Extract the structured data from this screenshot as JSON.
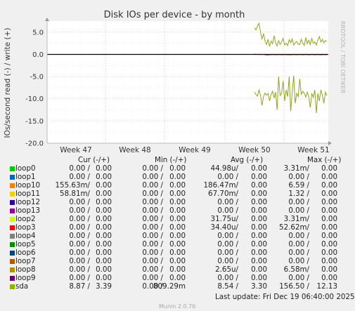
{
  "chart_data": {
    "type": "line",
    "title": "Disk IOs per device - by month",
    "ylabel": "IOs/second read (-) / write (+)",
    "side_label": "RRDTOOL / TOBI OETIKER",
    "ylim": [
      -20,
      7.5
    ],
    "yticks": [
      "5.0",
      "0.0",
      "-5.0",
      "-10.0",
      "-15.0",
      "-20.0"
    ],
    "ytick_values": [
      5,
      0,
      -5,
      -10,
      -15,
      -20
    ],
    "xticks": [
      "Week 47",
      "Week 48",
      "Week 49",
      "Week 50",
      "Week 51"
    ],
    "grid": true,
    "series": [
      {
        "name": "sda",
        "color": "#8FA41F",
        "write": [
          6.0,
          5.5,
          6.4,
          7.0,
          5.0,
          3.5,
          4.6,
          3.0,
          2.2,
          3.4,
          1.8,
          3.0,
          2.4,
          4.2,
          2.6,
          1.9,
          3.1,
          2.2,
          2.8,
          3.6,
          2.1,
          2.5,
          2.0,
          3.3,
          2.6,
          3.5,
          2.1,
          2.6,
          2.9,
          2.3,
          2.2,
          3.4,
          2.5,
          2.0,
          3.8,
          2.4,
          3.2,
          2.2,
          3.6,
          2.5,
          2.8,
          2.1,
          3.2,
          4.0,
          2.8,
          3.4,
          2.6,
          3.1,
          2.9
        ],
        "read": [
          -8.5,
          -9.0,
          -9.4,
          -8.0,
          -9.2,
          -11.5,
          -9.5,
          -8.7,
          -9.2,
          -8.8,
          -10.5,
          -9.0,
          -8.3,
          -9.8,
          -8.5,
          -12.5,
          -5.0,
          -9.3,
          -8.8,
          -6.0,
          -10.5,
          -8.0,
          -9.5,
          -5.0,
          -12.8,
          -8.6,
          -4.8,
          -11.0,
          -8.8,
          -9.5,
          -5.5,
          -9.0,
          -8.3,
          -8.8,
          -9.6,
          -8.5,
          -9.6,
          -12.0,
          -8.8,
          -9.7,
          -8.0,
          -13.2,
          -8.8,
          -10.5,
          -8.0,
          -9.2,
          -11.0,
          -8.5,
          -9.3
        ]
      },
      {
        "name": "loop3",
        "color": "#CC3300",
        "write": [
          0.05,
          0.0,
          -0.05,
          0.0,
          -0.15,
          -0.1,
          -0.05,
          -0.1,
          -0.05,
          -0.1,
          -0.05,
          -0.1,
          -0.1,
          -0.05,
          -0.1,
          -0.05,
          -0.1,
          -0.05,
          -0.1,
          -0.05,
          -0.1,
          -0.05,
          -0.1,
          -0.05,
          -0.1
        ]
      }
    ]
  },
  "legend": {
    "col_cur": "Cur (-/+)",
    "col_min": "Min (-/+)",
    "col_avg": "Avg (-/+)",
    "col_max": "Max (-/+)",
    "rows": [
      {
        "name": "loop0",
        "color": "#00CC00",
        "cur_r": "0.00 /",
        "cur_w": "0.00",
        "min_r": "0.00 /",
        "min_w": "0.00",
        "avg_r": "44.98u/",
        "avg_w": "0.00",
        "max_r": "3.31m/",
        "max_w": "0.00"
      },
      {
        "name": "loop1",
        "color": "#0066B3",
        "cur_r": "0.00 /",
        "cur_w": "0.00",
        "min_r": "0.00 /",
        "min_w": "0.00",
        "avg_r": "0.00 /",
        "avg_w": "0.00",
        "max_r": "0.00 /",
        "max_w": "0.00"
      },
      {
        "name": "loop10",
        "color": "#FF8000",
        "cur_r": "155.63m/",
        "cur_w": "0.00",
        "min_r": "0.00 /",
        "min_w": "0.00",
        "avg_r": "186.47m/",
        "avg_w": "0.00",
        "max_r": "6.59 /",
        "max_w": "0.00"
      },
      {
        "name": "loop11",
        "color": "#FFCC00",
        "cur_r": "58.81m/",
        "cur_w": "0.00",
        "min_r": "0.00 /",
        "min_w": "0.00",
        "avg_r": "67.70m/",
        "avg_w": "0.00",
        "max_r": "1.32 /",
        "max_w": "0.00"
      },
      {
        "name": "loop12",
        "color": "#330099",
        "cur_r": "0.00 /",
        "cur_w": "0.00",
        "min_r": "0.00 /",
        "min_w": "0.00",
        "avg_r": "0.00 /",
        "avg_w": "0.00",
        "max_r": "0.00 /",
        "max_w": "0.00"
      },
      {
        "name": "loop13",
        "color": "#990099",
        "cur_r": "0.00 /",
        "cur_w": "0.00",
        "min_r": "0.00 /",
        "min_w": "0.00",
        "avg_r": "0.00 /",
        "avg_w": "0.00",
        "max_r": "0.00 /",
        "max_w": "0.00"
      },
      {
        "name": "loop2",
        "color": "#CCFF00",
        "cur_r": "0.00 /",
        "cur_w": "0.00",
        "min_r": "0.00 /",
        "min_w": "0.00",
        "avg_r": "31.75u/",
        "avg_w": "0.00",
        "max_r": "3.31m/",
        "max_w": "0.00"
      },
      {
        "name": "loop3",
        "color": "#FF0000",
        "cur_r": "0.00 /",
        "cur_w": "0.00",
        "min_r": "0.00 /",
        "min_w": "0.00",
        "avg_r": "34.40u/",
        "avg_w": "0.00",
        "max_r": "52.62m/",
        "max_w": "0.00"
      },
      {
        "name": "loop4",
        "color": "#808080",
        "cur_r": "0.00 /",
        "cur_w": "0.00",
        "min_r": "0.00 /",
        "min_w": "0.00",
        "avg_r": "0.00 /",
        "avg_w": "0.00",
        "max_r": "0.00 /",
        "max_w": "0.00"
      },
      {
        "name": "loop5",
        "color": "#008F00",
        "cur_r": "0.00 /",
        "cur_w": "0.00",
        "min_r": "0.00 /",
        "min_w": "0.00",
        "avg_r": "0.00 /",
        "avg_w": "0.00",
        "max_r": "0.00 /",
        "max_w": "0.00"
      },
      {
        "name": "loop6",
        "color": "#00487D",
        "cur_r": "0.00 /",
        "cur_w": "0.00",
        "min_r": "0.00 /",
        "min_w": "0.00",
        "avg_r": "0.00 /",
        "avg_w": "0.00",
        "max_r": "0.00 /",
        "max_w": "0.00"
      },
      {
        "name": "loop7",
        "color": "#B35A00",
        "cur_r": "0.00 /",
        "cur_w": "0.00",
        "min_r": "0.00 /",
        "min_w": "0.00",
        "avg_r": "0.00 /",
        "avg_w": "0.00",
        "max_r": "0.00 /",
        "max_w": "0.00"
      },
      {
        "name": "loop8",
        "color": "#B38F00",
        "cur_r": "0.00 /",
        "cur_w": "0.00",
        "min_r": "0.00 /",
        "min_w": "0.00",
        "avg_r": "2.65u/",
        "avg_w": "0.00",
        "max_r": "6.58m/",
        "max_w": "0.00"
      },
      {
        "name": "loop9",
        "color": "#6B006B",
        "cur_r": "0.00 /",
        "cur_w": "0.00",
        "min_r": "0.00 /",
        "min_w": "0.00",
        "avg_r": "0.00 /",
        "avg_w": "0.00",
        "max_r": "0.00 /",
        "max_w": "0.00"
      },
      {
        "name": "sda",
        "color": "#8FB300",
        "cur_r": "8.87 /",
        "cur_w": "3.39",
        "min_r": "0.00 /",
        "min_w": "809.29m",
        "avg_r": "8.54 /",
        "avg_w": "3.30",
        "max_r": "156.50 /",
        "max_w": "12.13"
      }
    ]
  },
  "footer": {
    "last_update": "Last update: Fri Dec 19 06:40:00 2025",
    "munin": "Munin 2.0.76"
  }
}
